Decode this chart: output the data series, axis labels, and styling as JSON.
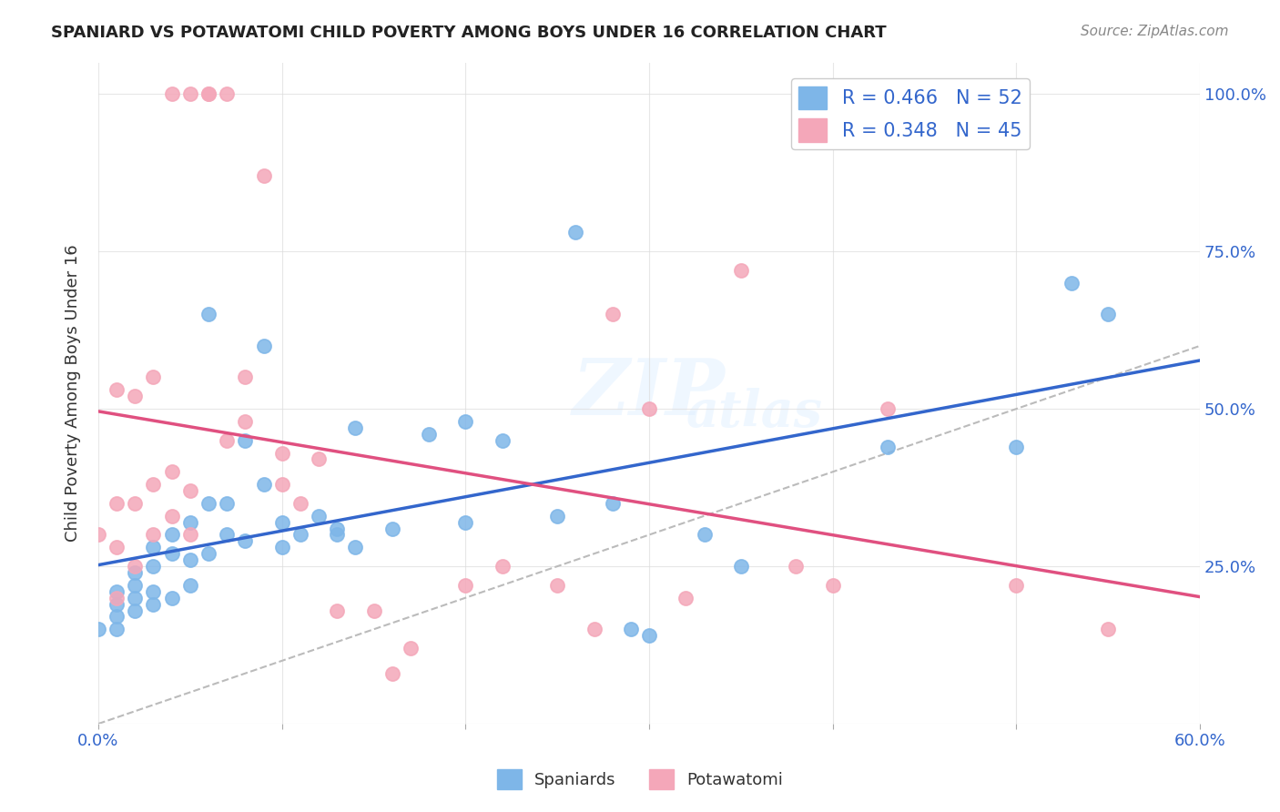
{
  "title": "SPANIARD VS POTAWATOMI CHILD POVERTY AMONG BOYS UNDER 16 CORRELATION CHART",
  "source": "Source: ZipAtlas.com",
  "ylabel": "Child Poverty Among Boys Under 16",
  "ytick_labels": [
    "",
    "25.0%",
    "50.0%",
    "75.0%",
    "100.0%"
  ],
  "ytick_values": [
    0,
    0.25,
    0.5,
    0.75,
    1.0
  ],
  "xlim": [
    0,
    0.6
  ],
  "ylim": [
    0,
    1.05
  ],
  "spaniards_R": 0.466,
  "spaniards_N": 52,
  "potawatomi_R": 0.348,
  "potawatomi_N": 45,
  "spaniard_color": "#7EB6E8",
  "potawatomi_color": "#F4A7B9",
  "spaniard_line_color": "#3366CC",
  "potawatomi_line_color": "#E05080",
  "diag_line_color": "#BBBBBB",
  "watermark_zip": "ZIP",
  "watermark_atlas": "atlas",
  "background_color": "#FFFFFF",
  "spaniards_x": [
    0.0,
    0.01,
    0.01,
    0.01,
    0.01,
    0.02,
    0.02,
    0.02,
    0.02,
    0.03,
    0.03,
    0.03,
    0.03,
    0.04,
    0.04,
    0.04,
    0.05,
    0.05,
    0.05,
    0.06,
    0.06,
    0.06,
    0.07,
    0.07,
    0.08,
    0.08,
    0.09,
    0.09,
    0.1,
    0.1,
    0.11,
    0.12,
    0.13,
    0.13,
    0.14,
    0.14,
    0.16,
    0.18,
    0.2,
    0.2,
    0.22,
    0.25,
    0.26,
    0.28,
    0.29,
    0.3,
    0.33,
    0.35,
    0.43,
    0.5,
    0.53,
    0.55
  ],
  "spaniards_y": [
    0.15,
    0.15,
    0.17,
    0.19,
    0.21,
    0.18,
    0.2,
    0.22,
    0.24,
    0.19,
    0.21,
    0.25,
    0.28,
    0.2,
    0.27,
    0.3,
    0.22,
    0.26,
    0.32,
    0.27,
    0.35,
    0.65,
    0.3,
    0.35,
    0.29,
    0.45,
    0.6,
    0.38,
    0.28,
    0.32,
    0.3,
    0.33,
    0.3,
    0.31,
    0.28,
    0.47,
    0.31,
    0.46,
    0.32,
    0.48,
    0.45,
    0.33,
    0.78,
    0.35,
    0.15,
    0.14,
    0.3,
    0.25,
    0.44,
    0.44,
    0.7,
    0.65
  ],
  "potawatomi_x": [
    0.0,
    0.01,
    0.01,
    0.01,
    0.01,
    0.02,
    0.02,
    0.02,
    0.03,
    0.03,
    0.03,
    0.04,
    0.04,
    0.04,
    0.05,
    0.05,
    0.05,
    0.06,
    0.06,
    0.07,
    0.07,
    0.08,
    0.08,
    0.09,
    0.1,
    0.1,
    0.11,
    0.12,
    0.13,
    0.15,
    0.16,
    0.17,
    0.2,
    0.22,
    0.25,
    0.27,
    0.28,
    0.3,
    0.32,
    0.35,
    0.38,
    0.4,
    0.43,
    0.5,
    0.55
  ],
  "potawatomi_y": [
    0.3,
    0.2,
    0.28,
    0.35,
    0.53,
    0.25,
    0.35,
    0.52,
    0.3,
    0.38,
    0.55,
    0.33,
    0.4,
    1.0,
    0.3,
    0.37,
    1.0,
    1.0,
    1.0,
    0.45,
    1.0,
    0.48,
    0.55,
    0.87,
    0.38,
    0.43,
    0.35,
    0.42,
    0.18,
    0.18,
    0.08,
    0.12,
    0.22,
    0.25,
    0.22,
    0.15,
    0.65,
    0.5,
    0.2,
    0.72,
    0.25,
    0.22,
    0.5,
    0.22,
    0.15
  ],
  "legend_label_blue": "R = 0.466   N = 52",
  "legend_label_pink": "R = 0.348   N = 45",
  "bottom_legend_spaniards": "Spaniards",
  "bottom_legend_potawatomi": "Potawatomi"
}
